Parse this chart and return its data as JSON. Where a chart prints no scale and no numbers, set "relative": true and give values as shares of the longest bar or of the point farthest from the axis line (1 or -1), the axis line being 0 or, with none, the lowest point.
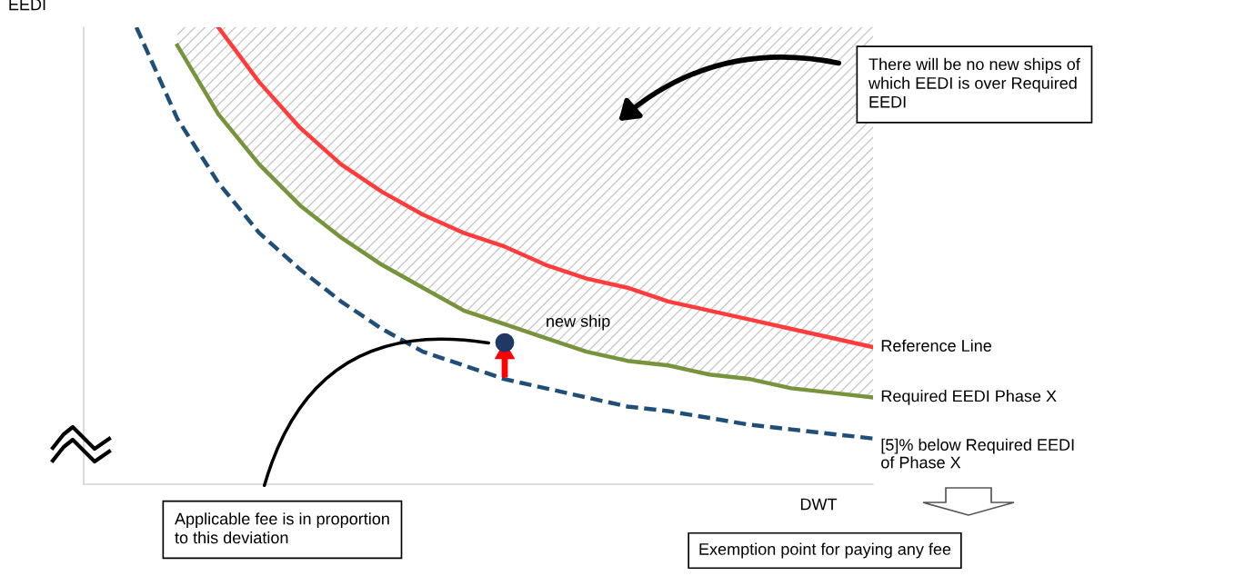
{
  "chart_data": {
    "type": "line",
    "relative": true,
    "xlabel": "DWT",
    "ylabel": "EEDI",
    "legend": false,
    "grid": false,
    "categories": [
      null,
      null,
      null,
      null,
      null,
      null,
      null,
      null,
      null,
      null,
      null,
      null,
      null,
      null,
      null,
      null,
      null,
      null,
      null
    ],
    "series": [
      {
        "name": "Reference Line",
        "color": "#ff3b3b",
        "line_style": "solid",
        "values": [
          null,
          null,
          1.0,
          0.88,
          0.78,
          0.7,
          0.64,
          0.59,
          0.55,
          0.52,
          0.48,
          0.45,
          0.43,
          0.4,
          0.38,
          0.36,
          0.34,
          0.32,
          0.3
        ]
      },
      {
        "name": "Required EEDI Phase X",
        "color": "#77933c",
        "line_style": "solid",
        "values": [
          null,
          0.96,
          0.81,
          0.7,
          0.61,
          0.54,
          0.48,
          0.43,
          0.38,
          0.35,
          0.32,
          0.29,
          0.27,
          0.26,
          0.24,
          0.23,
          0.21,
          0.2,
          0.19
        ],
        "lower": [
          null,
          0.96,
          0.81,
          0.7,
          0.61,
          0.54,
          0.48,
          0.43,
          0.38,
          0.35,
          0.32,
          0.29,
          0.27,
          0.26,
          0.24,
          0.23,
          0.21,
          0.2,
          0.19
        ],
        "upper": [
          null,
          1.0,
          1.0,
          1.0,
          1.0,
          1.0,
          1.0,
          1.0,
          1.0,
          1.0,
          1.0,
          1.0,
          1.0,
          1.0,
          1.0,
          1.0,
          1.0,
          1.0,
          1.0
        ]
      },
      {
        "name": "[5]% below Required EEDI\nof Phase X",
        "color": "#1f4e79",
        "line_style": "dashed",
        "values": [
          1.0,
          0.8,
          0.66,
          0.55,
          0.47,
          0.4,
          0.34,
          0.29,
          0.26,
          0.23,
          0.21,
          0.19,
          0.17,
          0.16,
          0.145,
          0.13,
          0.12,
          0.11,
          0.1
        ]
      }
    ],
    "annotations": [
      "There will be no new ships of\nwhich EEDI is over Required\nEEDI",
      "new ship",
      "Applicable fee is in proportion\nto this deviation",
      "Exemption point for paying any fee"
    ]
  }
}
